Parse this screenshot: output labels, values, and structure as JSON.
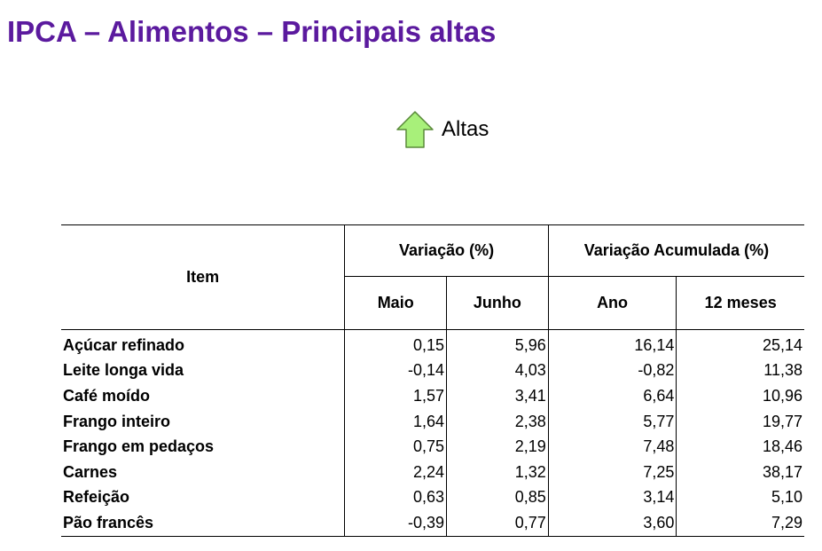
{
  "title": "IPCA – Alimentos – Principais altas",
  "legend": {
    "icon": "arrow-up-icon",
    "label": "Altas",
    "icon_color": "#a8f07a"
  },
  "colors": {
    "title": "#5b1a9e"
  },
  "table": {
    "headers": {
      "item": "Item",
      "variacao": "Variação (%)",
      "variacao_acumulada": "Variação Acumulada (%)",
      "maio": "Maio",
      "junho": "Junho",
      "ano": "Ano",
      "doze_meses": "12 meses"
    },
    "rows": [
      {
        "item": "Açúcar refinado",
        "maio": "0,15",
        "junho": "5,96",
        "ano": "16,14",
        "doze_meses": "25,14"
      },
      {
        "item": "Leite longa vida",
        "maio": "-0,14",
        "junho": "4,03",
        "ano": "-0,82",
        "doze_meses": "11,38"
      },
      {
        "item": "Café moído",
        "maio": "1,57",
        "junho": "3,41",
        "ano": "6,64",
        "doze_meses": "10,96"
      },
      {
        "item": "Frango inteiro",
        "maio": "1,64",
        "junho": "2,38",
        "ano": "5,77",
        "doze_meses": "19,77"
      },
      {
        "item": "Frango em pedaços",
        "maio": "0,75",
        "junho": "2,19",
        "ano": "7,48",
        "doze_meses": "18,46"
      },
      {
        "item": "Carnes",
        "maio": "2,24",
        "junho": "1,32",
        "ano": "7,25",
        "doze_meses": "38,17"
      },
      {
        "item": "Refeição",
        "maio": "0,63",
        "junho": "0,85",
        "ano": "3,14",
        "doze_meses": "5,10"
      },
      {
        "item": "Pão francês",
        "maio": "-0,39",
        "junho": "0,77",
        "ano": "3,60",
        "doze_meses": "7,29"
      }
    ]
  }
}
